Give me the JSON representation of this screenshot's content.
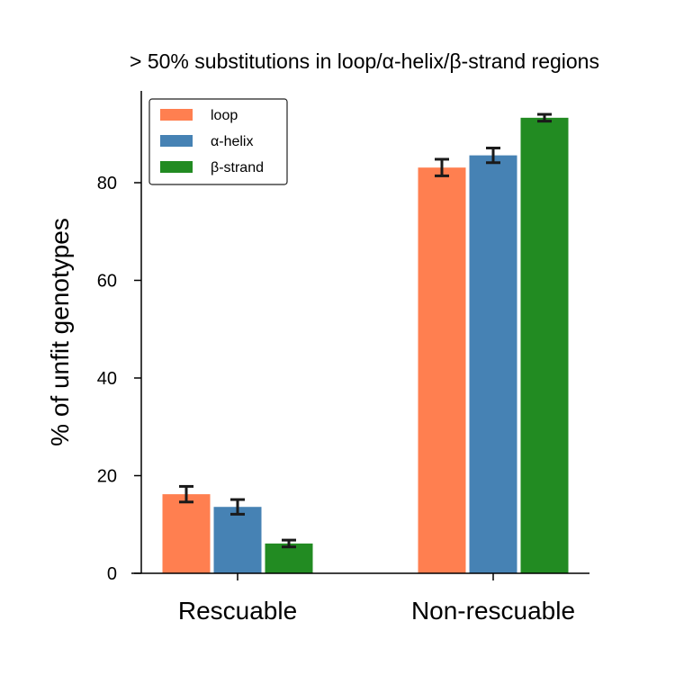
{
  "chart_data": {
    "type": "bar",
    "title": "> 50% substitutions in loop/α-helix/β-strand regions",
    "xlabel": "",
    "ylabel": "% of unfit genotypes",
    "categories": [
      "Rescuable",
      "Non-rescuable"
    ],
    "ylim": [
      0,
      99
    ],
    "yticks": [
      "0",
      "20",
      "40",
      "60",
      "80"
    ],
    "grid": false,
    "legend_position": "top-left",
    "series": [
      {
        "name": "loop",
        "color": "#FF7F50",
        "values": [
          16.2,
          83.1
        ],
        "errors": [
          1.6,
          1.7
        ]
      },
      {
        "name": "α-helix",
        "color": "#4682B4",
        "values": [
          13.6,
          85.6
        ],
        "errors": [
          1.5,
          1.5
        ]
      },
      {
        "name": "β-strand",
        "color": "#228B22",
        "values": [
          6.1,
          93.3
        ],
        "errors": [
          0.7,
          0.7
        ]
      }
    ]
  }
}
